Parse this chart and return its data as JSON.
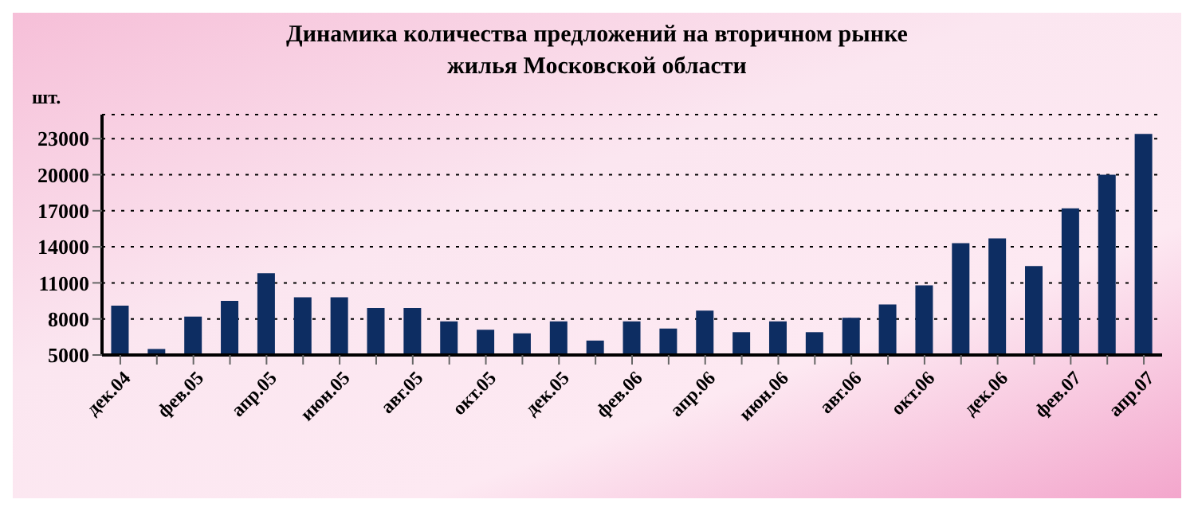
{
  "chart_data": {
    "type": "bar",
    "title": "Динамика количества предложений на вторичном рынке жилья Московской области",
    "ylabel": "шт.",
    "categories": [
      "дек.04",
      null,
      "фев.05",
      null,
      "апр.05",
      null,
      "июн.05",
      null,
      "авг.05",
      null,
      "окт.05",
      null,
      "дек.05",
      null,
      "фев.06",
      null,
      "апр.06",
      null,
      "июн.06",
      null,
      "авг.06",
      null,
      "окт.06",
      null,
      "дек.06",
      null,
      "фев.07",
      null,
      "апр.07"
    ],
    "values": [
      9100,
      5500,
      8200,
      9500,
      11800,
      9800,
      9800,
      8900,
      8900,
      7800,
      7100,
      6800,
      7800,
      6200,
      7800,
      7200,
      8700,
      6900,
      7800,
      6900,
      8100,
      9200,
      10800,
      14300,
      14700,
      12400,
      17200,
      20000,
      23400
    ],
    "color": "#0d2d62",
    "ylim": [
      5000,
      25000
    ],
    "yticks": [
      5000,
      8000,
      11000,
      14000,
      17000,
      20000,
      23000
    ],
    "grid": "y"
  }
}
